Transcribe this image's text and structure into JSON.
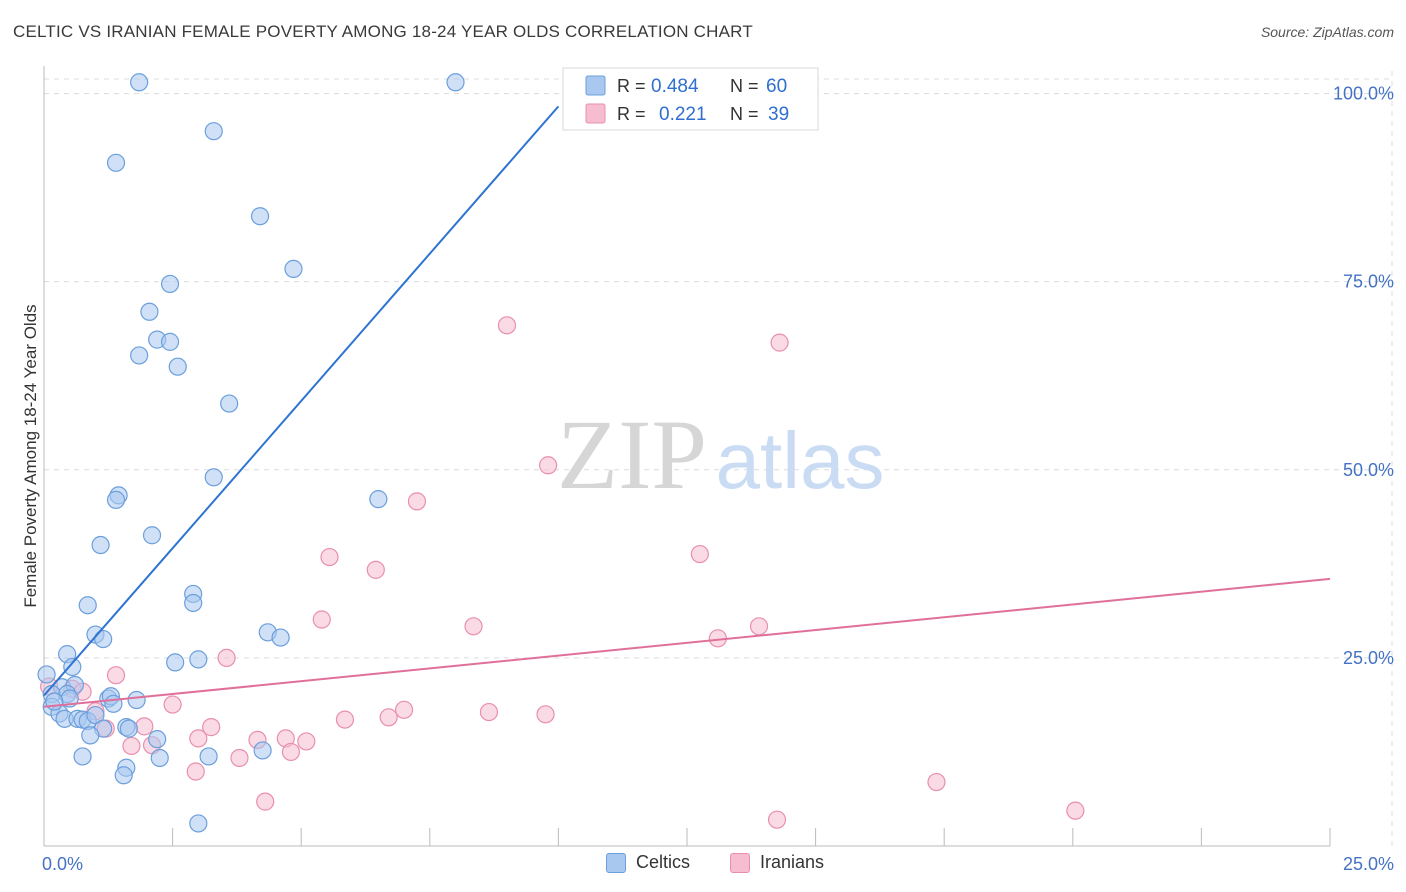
{
  "title": "CELTIC VS IRANIAN FEMALE POVERTY AMONG 18-24 YEAR OLDS CORRELATION CHART",
  "source": "Source: ZipAtlas.com",
  "watermark": {
    "zip": "ZIP",
    "atlas": "atlas"
  },
  "colors": {
    "celtic_fill": "#a9c8f0",
    "celtic_stroke": "#6b9fdc",
    "celtic_line": "#2e74d1",
    "iranian_fill": "#f6bcd0",
    "iranian_stroke": "#e98fae",
    "iranian_line": "#e0709a",
    "axis_label": "#4472c4",
    "grid": "#dcdcdc"
  },
  "legend_top": {
    "rows": [
      {
        "r_label": "R =",
        "r_value": "0.484",
        "n_label": "N =",
        "n_value": "60"
      },
      {
        "r_label": "R =",
        "r_value": "0.221",
        "n_label": "N =",
        "n_value": "39"
      }
    ]
  },
  "legend_bottom": [
    "Celtics",
    "Iranians"
  ],
  "chart_data": {
    "type": "scatter",
    "title": "CELTIC VS IRANIAN FEMALE POVERTY AMONG 18-24 YEAR OLDS CORRELATION CHART",
    "xlabel": "",
    "ylabel": "Female Poverty Among 18-24 Year Olds",
    "xlim": [
      0,
      25
    ],
    "ylim": [
      0,
      103
    ],
    "x_tick_labels": [
      {
        "value": 0,
        "label": "0.0%"
      },
      {
        "value": 25,
        "label": "25.0%"
      }
    ],
    "y_tick_labels": [
      {
        "value": 25,
        "label": "25.0%"
      },
      {
        "value": 50,
        "label": "50.0%"
      },
      {
        "value": 75,
        "label": "75.0%"
      },
      {
        "value": 100,
        "label": "100.0%"
      }
    ],
    "series": [
      {
        "name": "Celtics",
        "R": 0.484,
        "N": 60,
        "trend": {
          "x": [
            0.0,
            10.0
          ],
          "y": [
            20.0,
            98.3
          ]
        },
        "points": [
          [
            1.85,
            101.5
          ],
          [
            8.0,
            101.5
          ],
          [
            3.3,
            95.0
          ],
          [
            1.4,
            90.8
          ],
          [
            4.2,
            83.7
          ],
          [
            4.85,
            76.7
          ],
          [
            2.45,
            74.7
          ],
          [
            2.05,
            71.0
          ],
          [
            2.2,
            67.3
          ],
          [
            2.45,
            67.0
          ],
          [
            1.85,
            65.2
          ],
          [
            2.6,
            63.7
          ],
          [
            3.6,
            58.8
          ],
          [
            3.3,
            49.0
          ],
          [
            1.45,
            46.6
          ],
          [
            1.4,
            46.0
          ],
          [
            6.5,
            46.1
          ],
          [
            2.1,
            41.3
          ],
          [
            1.1,
            40.0
          ],
          [
            2.9,
            33.5
          ],
          [
            2.9,
            32.3
          ],
          [
            0.85,
            32.0
          ],
          [
            1.0,
            28.1
          ],
          [
            1.15,
            27.5
          ],
          [
            4.35,
            28.4
          ],
          [
            4.6,
            27.7
          ],
          [
            0.45,
            25.5
          ],
          [
            3.0,
            24.8
          ],
          [
            2.55,
            24.4
          ],
          [
            0.55,
            23.8
          ],
          [
            0.05,
            22.8
          ],
          [
            0.35,
            21.1
          ],
          [
            0.6,
            21.4
          ],
          [
            0.15,
            20.2
          ],
          [
            0.45,
            20.2
          ],
          [
            0.5,
            19.6
          ],
          [
            0.15,
            18.5
          ],
          [
            1.25,
            19.6
          ],
          [
            1.3,
            19.9
          ],
          [
            1.8,
            19.4
          ],
          [
            1.35,
            18.9
          ],
          [
            0.3,
            17.6
          ],
          [
            0.4,
            16.9
          ],
          [
            0.65,
            16.9
          ],
          [
            0.75,
            16.8
          ],
          [
            0.85,
            16.6
          ],
          [
            1.0,
            17.4
          ],
          [
            1.15,
            15.6
          ],
          [
            1.6,
            15.8
          ],
          [
            0.9,
            14.7
          ],
          [
            1.65,
            15.6
          ],
          [
            2.2,
            14.2
          ],
          [
            2.25,
            11.7
          ],
          [
            3.2,
            11.9
          ],
          [
            4.25,
            12.7
          ],
          [
            0.75,
            11.9
          ],
          [
            1.6,
            10.4
          ],
          [
            1.55,
            9.4
          ],
          [
            3.0,
            3.0
          ],
          [
            0.2,
            19.2
          ]
        ]
      },
      {
        "name": "Iranians",
        "R": 0.221,
        "N": 39,
        "trend": {
          "x": [
            0.0,
            25.0
          ],
          "y": [
            18.5,
            35.5
          ]
        },
        "points": [
          [
            9.0,
            69.2
          ],
          [
            14.3,
            66.9
          ],
          [
            9.8,
            50.6
          ],
          [
            7.25,
            45.8
          ],
          [
            5.55,
            38.4
          ],
          [
            12.75,
            38.8
          ],
          [
            6.45,
            36.7
          ],
          [
            5.4,
            30.1
          ],
          [
            8.35,
            29.2
          ],
          [
            13.9,
            29.2
          ],
          [
            13.1,
            27.6
          ],
          [
            3.55,
            25.0
          ],
          [
            1.4,
            22.7
          ],
          [
            0.1,
            21.2
          ],
          [
            0.55,
            20.9
          ],
          [
            0.75,
            20.5
          ],
          [
            2.5,
            18.8
          ],
          [
            1.0,
            17.9
          ],
          [
            7.0,
            18.1
          ],
          [
            8.65,
            17.8
          ],
          [
            9.75,
            17.5
          ],
          [
            6.7,
            17.1
          ],
          [
            5.85,
            16.8
          ],
          [
            1.95,
            15.9
          ],
          [
            3.25,
            15.8
          ],
          [
            1.2,
            15.6
          ],
          [
            3.0,
            14.3
          ],
          [
            4.15,
            14.1
          ],
          [
            4.7,
            14.3
          ],
          [
            5.1,
            13.9
          ],
          [
            1.7,
            13.3
          ],
          [
            2.1,
            13.4
          ],
          [
            4.8,
            12.5
          ],
          [
            3.8,
            11.7
          ],
          [
            2.95,
            9.9
          ],
          [
            17.35,
            8.5
          ],
          [
            4.3,
            5.9
          ],
          [
            20.05,
            4.7
          ],
          [
            14.25,
            3.5
          ]
        ]
      }
    ]
  }
}
